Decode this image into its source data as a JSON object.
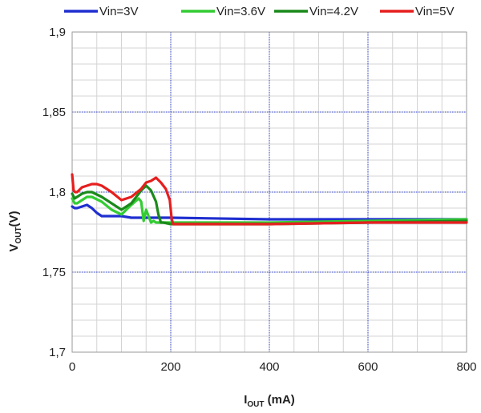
{
  "chart_data": {
    "type": "line",
    "title": "",
    "xlabel": {
      "main": "I",
      "sub": "OUT",
      "suffix": " (mA)"
    },
    "ylabel": {
      "main": "V",
      "sub": "OUT",
      "suffix": "(V)"
    },
    "xlim": [
      0,
      800
    ],
    "ylim": [
      1.7,
      1.9
    ],
    "x_ticks": [
      0,
      200,
      400,
      600,
      800
    ],
    "x_tick_labels": [
      "0",
      "200",
      "400",
      "600",
      "800"
    ],
    "y_ticks": [
      1.7,
      1.75,
      1.8,
      1.85,
      1.9
    ],
    "y_tick_labels": [
      "1,7",
      "1,75",
      "1,8",
      "1,85",
      "1,9"
    ],
    "grid": true,
    "legend_position": "top",
    "series": [
      {
        "name": "Vin=3V",
        "color": "#1f2fd0",
        "x": [
          0,
          5,
          10,
          20,
          30,
          40,
          50,
          60,
          70,
          80,
          100,
          120,
          150,
          200,
          400,
          600,
          800
        ],
        "y": [
          1.791,
          1.79,
          1.79,
          1.791,
          1.792,
          1.79,
          1.787,
          1.785,
          1.785,
          1.785,
          1.785,
          1.784,
          1.784,
          1.784,
          1.783,
          1.783,
          1.783
        ]
      },
      {
        "name": "Vin=3.6V",
        "color": "#33cc33",
        "x": [
          0,
          5,
          10,
          20,
          30,
          40,
          60,
          80,
          100,
          120,
          135,
          140,
          145,
          150,
          155,
          160,
          165,
          170,
          180,
          200,
          400,
          600,
          800
        ],
        "y": [
          1.796,
          1.793,
          1.793,
          1.795,
          1.797,
          1.797,
          1.794,
          1.789,
          1.786,
          1.792,
          1.796,
          1.794,
          1.782,
          1.789,
          1.785,
          1.781,
          1.782,
          1.781,
          1.781,
          1.781,
          1.781,
          1.782,
          1.783
        ]
      },
      {
        "name": "Vin=4.2V",
        "color": "#1a8a1a",
        "x": [
          0,
          5,
          10,
          20,
          30,
          40,
          60,
          80,
          100,
          120,
          140,
          150,
          160,
          170,
          175,
          180,
          185,
          200,
          400,
          600,
          800
        ],
        "y": [
          1.799,
          1.796,
          1.797,
          1.799,
          1.8,
          1.8,
          1.797,
          1.793,
          1.789,
          1.793,
          1.801,
          1.804,
          1.801,
          1.794,
          1.786,
          1.781,
          1.781,
          1.78,
          1.78,
          1.781,
          1.782
        ]
      },
      {
        "name": "Vin=5V",
        "color": "#e61e1e",
        "x": [
          0,
          3,
          6,
          10,
          20,
          30,
          40,
          50,
          60,
          80,
          100,
          120,
          140,
          150,
          160,
          170,
          180,
          190,
          198,
          202,
          205,
          400,
          600,
          800
        ],
        "y": [
          1.811,
          1.801,
          1.8,
          1.8,
          1.803,
          1.804,
          1.805,
          1.805,
          1.804,
          1.8,
          1.795,
          1.797,
          1.802,
          1.806,
          1.807,
          1.809,
          1.806,
          1.802,
          1.795,
          1.783,
          1.78,
          1.78,
          1.781,
          1.781
        ]
      }
    ]
  }
}
